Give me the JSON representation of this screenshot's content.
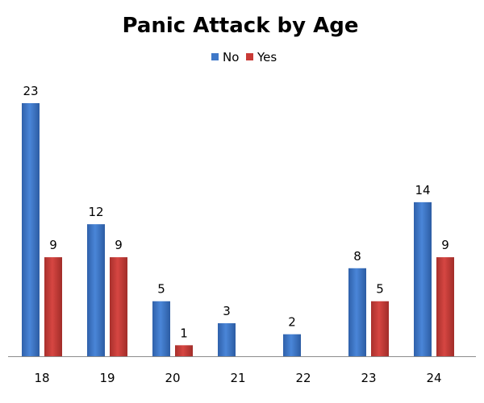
{
  "chart_data": {
    "type": "bar",
    "title": "Panic Attack by Age",
    "xlabel": "",
    "ylabel": "",
    "categories": [
      "18",
      "19",
      "20",
      "21",
      "22",
      "23",
      "24"
    ],
    "series": [
      {
        "name": "No",
        "color": "#3F78C8",
        "values": [
          23,
          12,
          5,
          3,
          2,
          8,
          14
        ]
      },
      {
        "name": "Yes",
        "color": "#C93A36",
        "values": [
          9,
          9,
          1,
          null,
          null,
          5,
          9
        ]
      }
    ],
    "ylim": [
      0,
      23
    ],
    "grid": false,
    "legend_position": "top-center",
    "data_labels": true
  }
}
